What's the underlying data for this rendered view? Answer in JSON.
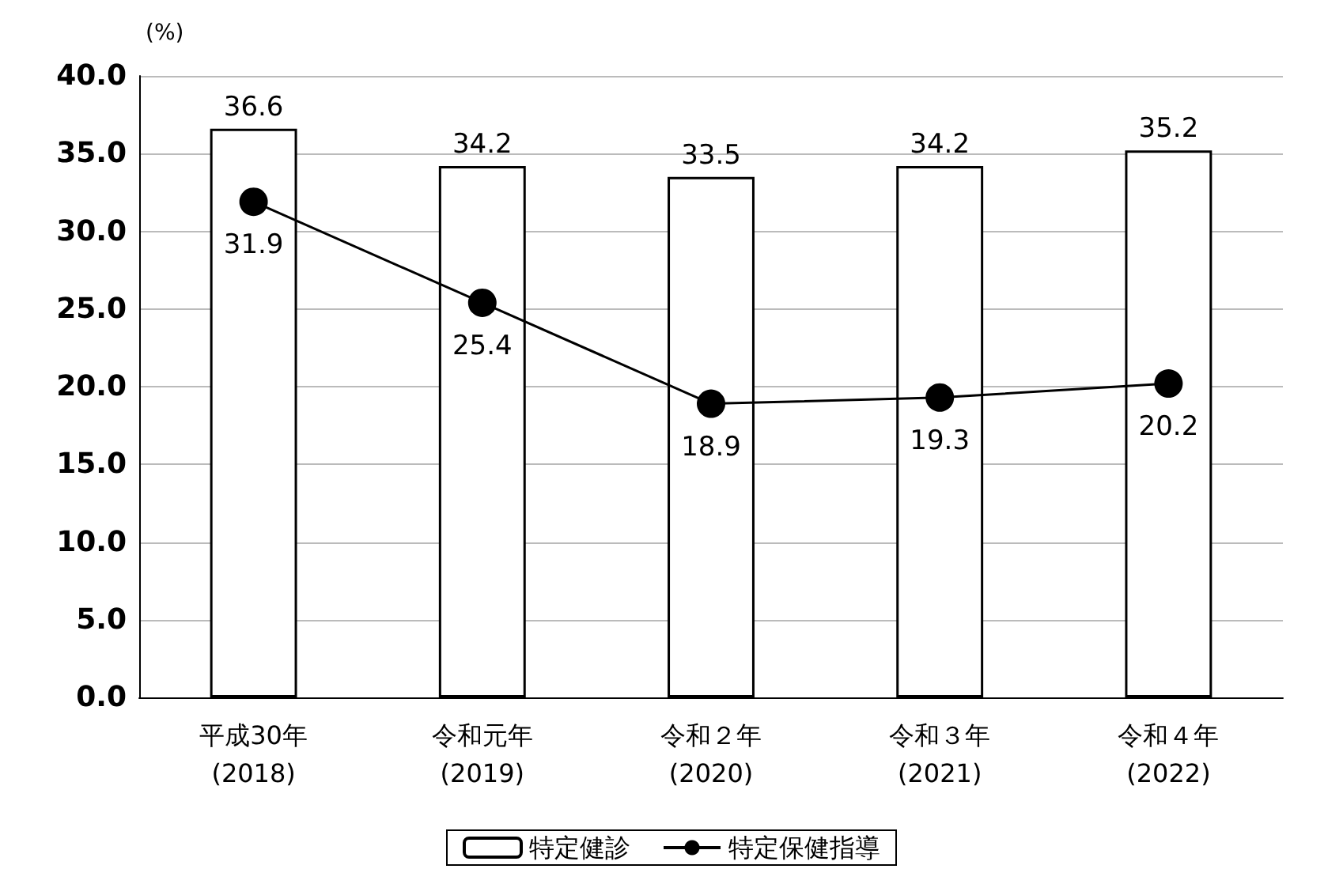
{
  "chart_data": {
    "type": "bar",
    "ylabel": "(%)",
    "categories": [
      "平成30年\n(2018)",
      "令和元年\n(2019)",
      "令和２年\n(2020)",
      "令和３年\n(2021)",
      "令和４年\n(2022)"
    ],
    "series": [
      {
        "name": "特定健診",
        "color": "#ffffff",
        "values": [
          36.6,
          34.2,
          33.5,
          34.2,
          35.2
        ]
      },
      {
        "name": "特定保健指導",
        "type": "line",
        "color": "#000000",
        "values": [
          31.9,
          25.4,
          18.9,
          19.3,
          20.2
        ]
      }
    ],
    "ylim": [
      0,
      40
    ],
    "yticks": [
      {
        "value": 0,
        "label": "0.0"
      },
      {
        "value": 5,
        "label": "5.0"
      },
      {
        "value": 10,
        "label": "10.0"
      },
      {
        "value": 15,
        "label": "15.0"
      },
      {
        "value": 20,
        "label": "20.0"
      },
      {
        "value": 25,
        "label": "25.0"
      },
      {
        "value": 30,
        "label": "30.0"
      },
      {
        "value": 35,
        "label": "35.0"
      },
      {
        "value": 40,
        "label": "40.0"
      }
    ],
    "grid": "y",
    "legend": "bottom",
    "data_labels": true,
    "marker": "circle",
    "line_style": "solid"
  }
}
